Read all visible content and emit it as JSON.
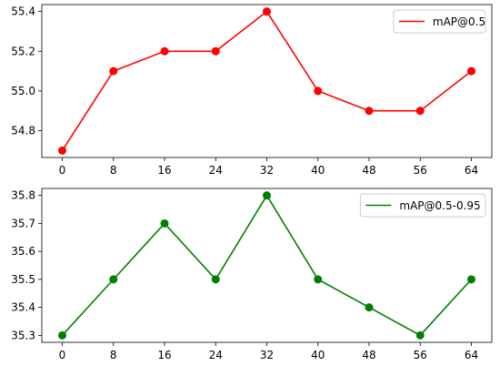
{
  "chart_data": [
    {
      "type": "line",
      "x": [
        0,
        8,
        16,
        24,
        32,
        40,
        48,
        56,
        64
      ],
      "series": [
        {
          "name": "mAP@0.5",
          "color": "#ff0000",
          "values": [
            54.7,
            55.1,
            55.2,
            55.2,
            55.4,
            55.0,
            54.9,
            54.9,
            55.1
          ]
        }
      ],
      "yticks": [
        54.8,
        55.0,
        55.2,
        55.4
      ],
      "ytick_labels": [
        "54.8",
        "55.0",
        "55.2",
        "55.4"
      ],
      "xtick_labels": [
        "0",
        "8",
        "16",
        "24",
        "32",
        "40",
        "48",
        "56",
        "64"
      ],
      "ylim": [
        54.665,
        55.435
      ],
      "xlim": [
        -3.2,
        67.2
      ],
      "legend": "top-right",
      "grid": false
    },
    {
      "type": "line",
      "x": [
        0,
        8,
        16,
        24,
        32,
        40,
        48,
        56,
        64
      ],
      "series": [
        {
          "name": "mAP@0.5-0.95",
          "color": "#008000",
          "values": [
            35.3,
            35.5,
            35.7,
            35.5,
            35.8,
            35.5,
            35.4,
            35.3,
            35.5
          ]
        }
      ],
      "yticks": [
        35.3,
        35.4,
        35.5,
        35.6,
        35.7,
        35.8
      ],
      "ytick_labels": [
        "35.3",
        "35.4",
        "35.5",
        "35.6",
        "35.7",
        "35.8"
      ],
      "xtick_labels": [
        "0",
        "8",
        "16",
        "24",
        "32",
        "40",
        "48",
        "56",
        "64"
      ],
      "ylim": [
        35.275,
        35.825
      ],
      "xlim": [
        -3.2,
        67.2
      ],
      "legend": "top-right",
      "grid": false
    }
  ]
}
